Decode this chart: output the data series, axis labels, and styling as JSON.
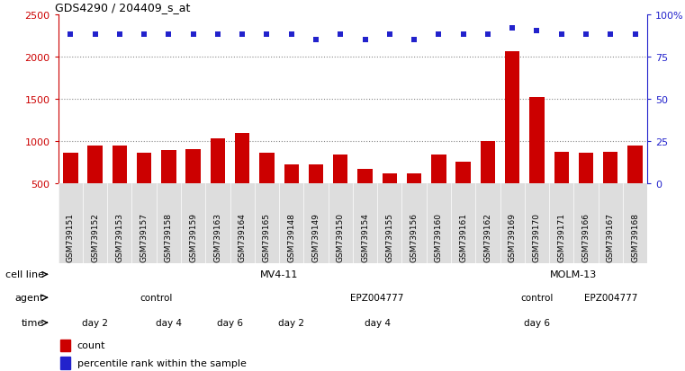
{
  "title": "GDS4290 / 204409_s_at",
  "samples": [
    "GSM739151",
    "GSM739152",
    "GSM739153",
    "GSM739157",
    "GSM739158",
    "GSM739159",
    "GSM739163",
    "GSM739164",
    "GSM739165",
    "GSM739148",
    "GSM739149",
    "GSM739150",
    "GSM739154",
    "GSM739155",
    "GSM739156",
    "GSM739160",
    "GSM739161",
    "GSM739162",
    "GSM739169",
    "GSM739170",
    "GSM739171",
    "GSM739166",
    "GSM739167",
    "GSM739168"
  ],
  "counts": [
    860,
    940,
    950,
    855,
    890,
    900,
    1030,
    1095,
    865,
    720,
    720,
    840,
    670,
    615,
    620,
    840,
    750,
    1000,
    2060,
    1520,
    870,
    855,
    870,
    950
  ],
  "percentile_ranks": [
    88,
    88,
    88,
    88,
    88,
    88,
    88,
    88,
    88,
    88,
    85,
    88,
    85,
    88,
    85,
    88,
    88,
    88,
    92,
    90,
    88,
    88,
    88,
    88
  ],
  "bar_color": "#cc0000",
  "dot_color": "#2222cc",
  "cell_line_mv411": {
    "label": "MV4-11",
    "start": 0,
    "end": 18,
    "color": "#aaddaa"
  },
  "cell_line_molm13": {
    "label": "MOLM-13",
    "start": 18,
    "end": 24,
    "color": "#33cc33"
  },
  "agent_groups": [
    {
      "label": "control",
      "start": 0,
      "end": 8,
      "color": "#bbbbee"
    },
    {
      "label": "EPZ004777",
      "start": 8,
      "end": 18,
      "color": "#7766cc"
    },
    {
      "label": "control",
      "start": 18,
      "end": 21,
      "color": "#bbbbee"
    },
    {
      "label": "EPZ004777",
      "start": 21,
      "end": 24,
      "color": "#7766cc"
    }
  ],
  "time_groups": [
    {
      "label": "day 2",
      "start": 0,
      "end": 3,
      "color": "#ffcccc"
    },
    {
      "label": "day 4",
      "start": 3,
      "end": 6,
      "color": "#dd9988"
    },
    {
      "label": "day 6",
      "start": 6,
      "end": 8,
      "color": "#cc6655"
    },
    {
      "label": "day 2",
      "start": 8,
      "end": 11,
      "color": "#ffcccc"
    },
    {
      "label": "day 4",
      "start": 11,
      "end": 15,
      "color": "#dd9988"
    },
    {
      "label": "day 6",
      "start": 15,
      "end": 24,
      "color": "#cc6655"
    }
  ],
  "ylim_left": [
    500,
    2500
  ],
  "ylim_right": [
    0,
    100
  ],
  "yticks_left": [
    500,
    1000,
    1500,
    2000,
    2500
  ],
  "yticks_right": [
    0,
    25,
    50,
    75,
    100
  ],
  "background_color": "#ffffff",
  "grid_color": "#888888",
  "xtick_bg": "#dddddd"
}
